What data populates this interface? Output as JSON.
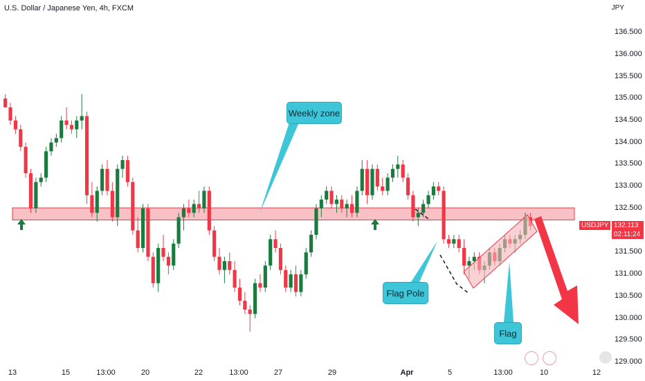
{
  "header": {
    "title": "U.S. Dollar / Japanese Yen, 4h, FXCM",
    "currency": "JPY"
  },
  "price_badge": {
    "symbol": "USDJPY",
    "last": "132.113",
    "countdown": "02:11:24"
  },
  "annotations": {
    "weekly_zone": "Weekly zone",
    "flag_pole": "Flag Pole",
    "flag": "Flag"
  },
  "colors": {
    "up": "#26a69a",
    "up_dark": "#1b7a3e",
    "down": "#f23645",
    "zone_fill": "#f7b2b8",
    "callout": "#3ec6d8"
  },
  "chart_data": {
    "type": "candlestick",
    "title": "U.S. Dollar / Japanese Yen, 4h, FXCM",
    "y_unit": "JPY",
    "ylim": [
      129.0,
      136.8
    ],
    "y_ticks": [
      "136.500",
      "136.000",
      "135.500",
      "135.000",
      "134.500",
      "134.000",
      "133.500",
      "133.000",
      "132.500",
      "132.000",
      "131.500",
      "131.000",
      "130.500",
      "130.000",
      "129.500",
      "129.000"
    ],
    "x_ticks": [
      "13",
      "15",
      "13:00",
      "20",
      "22",
      "13:00",
      "27",
      "29",
      "Apr",
      "5",
      "13:00",
      "10",
      "12"
    ],
    "candles": [
      [
        135.0,
        135.1,
        134.8,
        134.8
      ],
      [
        134.8,
        134.9,
        134.4,
        134.5
      ],
      [
        134.5,
        134.6,
        134.2,
        134.3
      ],
      [
        134.3,
        134.4,
        133.8,
        133.9
      ],
      [
        133.9,
        134.0,
        133.2,
        133.3
      ],
      [
        133.3,
        133.4,
        132.4,
        132.5
      ],
      [
        132.5,
        133.2,
        132.4,
        133.1
      ],
      [
        133.1,
        133.3,
        133.0,
        133.2
      ],
      [
        133.2,
        133.9,
        133.1,
        133.8
      ],
      [
        133.8,
        134.1,
        133.7,
        134.0
      ],
      [
        134.0,
        134.2,
        133.9,
        134.1
      ],
      [
        134.1,
        134.6,
        134.0,
        134.5
      ],
      [
        134.5,
        134.8,
        134.3,
        134.4
      ],
      [
        134.4,
        134.5,
        134.2,
        134.3
      ],
      [
        134.3,
        134.6,
        134.1,
        134.5
      ],
      [
        134.5,
        135.1,
        134.3,
        134.6
      ],
      [
        134.6,
        134.7,
        132.6,
        132.8
      ],
      [
        132.8,
        133.1,
        132.3,
        132.4
      ],
      [
        132.4,
        133.0,
        132.2,
        132.9
      ],
      [
        132.9,
        133.5,
        132.8,
        133.4
      ],
      [
        133.4,
        133.6,
        132.8,
        132.9
      ],
      [
        132.9,
        133.1,
        132.2,
        132.3
      ],
      [
        132.3,
        133.5,
        132.1,
        133.4
      ],
      [
        133.4,
        133.7,
        133.2,
        133.6
      ],
      [
        133.6,
        133.7,
        133.0,
        133.1
      ],
      [
        133.1,
        133.2,
        131.9,
        132.0
      ],
      [
        132.0,
        132.3,
        131.5,
        131.6
      ],
      [
        131.6,
        132.6,
        131.5,
        132.5
      ],
      [
        132.5,
        132.6,
        131.3,
        131.4
      ],
      [
        131.4,
        131.5,
        130.7,
        130.8
      ],
      [
        130.8,
        131.7,
        130.6,
        131.6
      ],
      [
        131.6,
        131.9,
        131.3,
        131.4
      ],
      [
        131.4,
        131.5,
        131.0,
        131.2
      ],
      [
        131.2,
        131.8,
        131.1,
        131.7
      ],
      [
        131.7,
        132.4,
        131.6,
        132.3
      ],
      [
        132.3,
        132.6,
        132.0,
        132.5
      ],
      [
        132.5,
        132.7,
        132.3,
        132.4
      ],
      [
        132.4,
        132.7,
        132.3,
        132.6
      ],
      [
        132.6,
        132.9,
        132.4,
        132.5
      ],
      [
        132.5,
        133.0,
        132.4,
        132.9
      ],
      [
        132.9,
        133.0,
        131.9,
        132.0
      ],
      [
        132.0,
        132.1,
        131.3,
        131.4
      ],
      [
        131.4,
        131.6,
        131.0,
        131.1
      ],
      [
        131.1,
        131.4,
        130.8,
        131.3
      ],
      [
        131.3,
        131.5,
        131.0,
        131.1
      ],
      [
        131.1,
        131.3,
        130.6,
        130.7
      ],
      [
        130.7,
        130.9,
        130.3,
        130.4
      ],
      [
        130.4,
        130.6,
        130.1,
        130.2
      ],
      [
        130.2,
        130.3,
        129.7,
        130.1
      ],
      [
        130.1,
        130.9,
        130.0,
        130.8
      ],
      [
        130.8,
        131.0,
        130.6,
        130.7
      ],
      [
        130.7,
        131.3,
        130.6,
        131.2
      ],
      [
        131.2,
        131.9,
        131.1,
        131.8
      ],
      [
        131.8,
        132.0,
        131.5,
        131.6
      ],
      [
        131.6,
        131.7,
        131.0,
        131.1
      ],
      [
        131.1,
        131.2,
        130.6,
        130.7
      ],
      [
        130.7,
        131.1,
        130.6,
        131.0
      ],
      [
        131.0,
        131.2,
        130.5,
        130.6
      ],
      [
        130.6,
        131.1,
        130.5,
        131.0
      ],
      [
        131.0,
        131.6,
        130.9,
        131.5
      ],
      [
        131.5,
        132.0,
        131.4,
        131.9
      ],
      [
        131.9,
        132.6,
        131.8,
        132.5
      ],
      [
        132.5,
        132.8,
        132.3,
        132.7
      ],
      [
        132.7,
        133.0,
        132.6,
        132.9
      ],
      [
        132.9,
        133.0,
        132.5,
        132.6
      ],
      [
        132.6,
        132.8,
        132.4,
        132.7
      ],
      [
        132.7,
        132.8,
        132.4,
        132.5
      ],
      [
        132.5,
        132.7,
        132.3,
        132.6
      ],
      [
        132.6,
        132.8,
        132.3,
        132.4
      ],
      [
        132.4,
        133.0,
        132.3,
        132.9
      ],
      [
        132.9,
        133.6,
        132.8,
        133.4
      ],
      [
        133.4,
        133.6,
        132.6,
        132.8
      ],
      [
        132.8,
        133.5,
        132.7,
        133.4
      ],
      [
        133.4,
        133.5,
        132.9,
        133.0
      ],
      [
        133.0,
        133.2,
        132.8,
        132.9
      ],
      [
        132.9,
        133.3,
        132.8,
        133.2
      ],
      [
        133.2,
        133.5,
        133.1,
        133.4
      ],
      [
        133.4,
        133.7,
        133.2,
        133.5
      ],
      [
        133.5,
        133.6,
        133.1,
        133.2
      ],
      [
        133.2,
        133.3,
        132.7,
        132.8
      ],
      [
        132.8,
        132.9,
        132.2,
        132.3
      ],
      [
        132.3,
        132.5,
        132.1,
        132.4
      ],
      [
        132.4,
        132.7,
        132.3,
        132.6
      ],
      [
        132.6,
        132.9,
        132.5,
        132.8
      ],
      [
        132.8,
        133.1,
        132.7,
        133.0
      ],
      [
        133.0,
        133.1,
        132.8,
        132.9
      ],
      [
        132.9,
        133.0,
        131.7,
        131.8
      ],
      [
        131.8,
        131.9,
        131.6,
        131.7
      ],
      [
        131.7,
        131.9,
        131.6,
        131.8
      ],
      [
        131.8,
        131.9,
        131.5,
        131.6
      ],
      [
        131.6,
        131.8,
        131.0,
        131.2
      ],
      [
        131.2,
        131.4,
        130.9,
        131.3
      ],
      [
        131.3,
        131.5,
        131.1,
        131.4
      ],
      [
        131.4,
        131.5,
        131.0,
        131.1
      ],
      [
        131.1,
        131.3,
        130.8,
        131.2
      ],
      [
        131.2,
        131.6,
        131.1,
        131.5
      ],
      [
        131.5,
        131.6,
        131.2,
        131.3
      ],
      [
        131.3,
        131.7,
        131.2,
        131.6
      ],
      [
        131.6,
        131.9,
        131.5,
        131.8
      ],
      [
        131.8,
        131.9,
        131.6,
        131.7
      ],
      [
        131.7,
        131.9,
        131.5,
        131.8
      ],
      [
        131.8,
        132.0,
        131.7,
        131.9
      ],
      [
        131.9,
        132.4,
        131.8,
        132.3
      ],
      [
        132.3,
        132.4,
        132.0,
        132.1
      ]
    ],
    "zone": {
      "low": 132.3,
      "high": 132.45
    }
  }
}
